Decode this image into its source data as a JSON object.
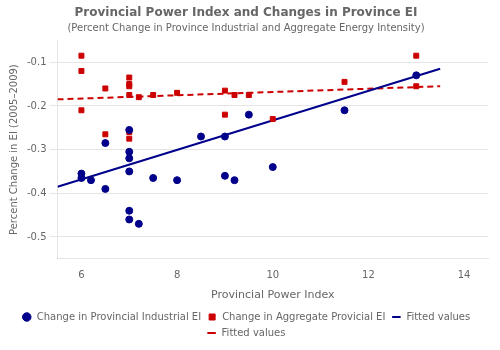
{
  "chart_data": {
    "type": "scatter",
    "title": "Provincial Power Index and Changes in Province EI",
    "subtitle": "(Percent Change in Province Industrial and Aggregate Energy Intensity)",
    "x_label": "Provincial Power Index",
    "y_label": "Percent Change in EI (2005–2009)",
    "xlim": [
      5.5,
      14.5
    ],
    "ylim": [
      -0.55,
      -0.05
    ],
    "xticks": [
      6,
      8,
      10,
      12,
      14
    ],
    "yticks": [
      -0.5,
      -0.4,
      -0.3,
      -0.2,
      -0.1
    ],
    "grid": "y",
    "legend": "bottom",
    "series": [
      {
        "name": "Change in Provincial Industrial EI",
        "type": "scatter",
        "marker": "circle",
        "color": "#00008B",
        "x": [
          6.0,
          6.0,
          6.2,
          6.5,
          6.5,
          7.0,
          7.0,
          7.0,
          7.0,
          7.0,
          7.0,
          7.2,
          7.5,
          8.0,
          8.5,
          9.0,
          9.0,
          9.2,
          9.5,
          10.0,
          11.5,
          13.0
        ],
        "values": [
          -0.355,
          -0.365,
          -0.37,
          -0.285,
          -0.39,
          -0.255,
          -0.305,
          -0.32,
          -0.35,
          -0.44,
          -0.46,
          -0.47,
          -0.365,
          -0.37,
          -0.27,
          -0.27,
          -0.36,
          -0.37,
          -0.22,
          -0.34,
          -0.21,
          -0.13
        ]
      },
      {
        "name": "Fitted values",
        "type": "line",
        "line_style": "solid",
        "color": "#00008B",
        "x": [
          5.5,
          13.5
        ],
        "values": [
          -0.385,
          -0.115
        ]
      },
      {
        "name": "Change in Aggregate Provicial EI",
        "type": "scatter",
        "marker": "square",
        "color": "#CC0000",
        "x": [
          6.0,
          6.0,
          6.0,
          6.5,
          6.5,
          7.0,
          7.0,
          7.0,
          7.0,
          7.0,
          7.0,
          7.2,
          7.5,
          8.0,
          9.0,
          9.0,
          9.2,
          9.5,
          10.0,
          11.5,
          13.0,
          13.0
        ],
        "values": [
          -0.085,
          -0.12,
          -0.21,
          -0.16,
          -0.265,
          -0.135,
          -0.15,
          -0.155,
          -0.175,
          -0.26,
          -0.275,
          -0.18,
          -0.175,
          -0.17,
          -0.165,
          -0.22,
          -0.175,
          -0.175,
          -0.23,
          -0.145,
          -0.085,
          -0.155
        ]
      },
      {
        "name": "Fitted values",
        "type": "line",
        "line_style": "dashed",
        "color": "#CC0000",
        "x": [
          5.5,
          13.5
        ],
        "values": [
          -0.185,
          -0.155
        ]
      }
    ]
  }
}
